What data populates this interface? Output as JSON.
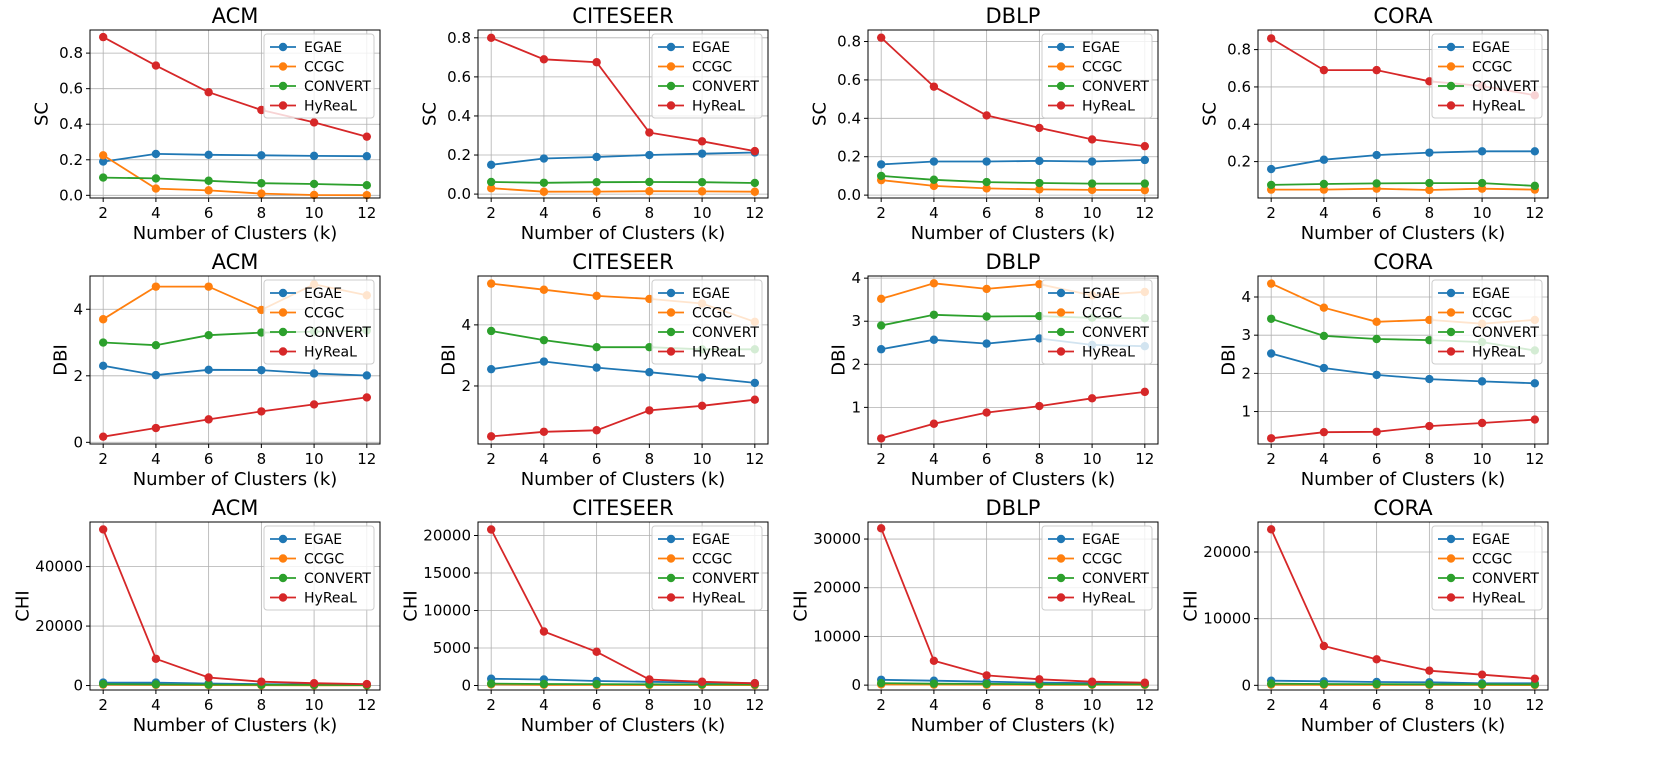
{
  "chart_data": {
    "type": "line",
    "layout": "3x4 grid",
    "x": [
      2,
      4,
      6,
      8,
      10,
      12
    ],
    "xlabel": "Number of Clusters (k)",
    "xticks": [
      "2",
      "4",
      "6",
      "8",
      "10",
      "12"
    ],
    "colors": {
      "EGAE": "#1f77b4",
      "CCGC": "#ff7f0e",
      "CONVERT": "#2ca02c",
      "HyReaL": "#d62728"
    },
    "legend_position": "upper right",
    "grid": true,
    "panels": [
      {
        "title": "ACM",
        "ylabel": "SC",
        "ylim": [
          -0.015,
          0.93
        ],
        "yticks": [
          0,
          0.2,
          0.4,
          0.6,
          0.8
        ],
        "ytick_labels": [
          "0.0",
          "0.2",
          "0.4",
          "0.6",
          "0.8"
        ],
        "series": [
          {
            "name": "EGAE",
            "values": [
              0.19,
              0.233,
              0.228,
              0.225,
              0.222,
              0.22
            ]
          },
          {
            "name": "CCGC",
            "values": [
              0.225,
              0.038,
              0.028,
              0.01,
              0.002,
              0.001
            ]
          },
          {
            "name": "CONVERT",
            "values": [
              0.1,
              0.095,
              0.082,
              0.068,
              0.064,
              0.057
            ]
          },
          {
            "name": "HyReaL",
            "values": [
              0.89,
              0.73,
              0.58,
              0.48,
              0.41,
              0.33
            ]
          }
        ]
      },
      {
        "title": "CITESEER",
        "ylabel": "SC",
        "ylim": [
          -0.02,
          0.84
        ],
        "yticks": [
          0,
          0.2,
          0.4,
          0.6,
          0.8
        ],
        "ytick_labels": [
          "0.0",
          "0.2",
          "0.4",
          "0.6",
          "0.8"
        ],
        "series": [
          {
            "name": "EGAE",
            "values": [
              0.15,
              0.182,
              0.19,
              0.2,
              0.207,
              0.213
            ]
          },
          {
            "name": "CCGC",
            "values": [
              0.03,
              0.012,
              0.013,
              0.015,
              0.014,
              0.012
            ]
          },
          {
            "name": "CONVERT",
            "values": [
              0.062,
              0.058,
              0.061,
              0.062,
              0.061,
              0.057
            ]
          },
          {
            "name": "HyReaL",
            "values": [
              0.8,
              0.69,
              0.675,
              0.315,
              0.27,
              0.22
            ]
          }
        ]
      },
      {
        "title": "DBLP",
        "ylabel": "SC",
        "ylim": [
          -0.015,
          0.86
        ],
        "yticks": [
          0,
          0.2,
          0.4,
          0.6,
          0.8
        ],
        "ytick_labels": [
          "0.0",
          "0.2",
          "0.4",
          "0.6",
          "0.8"
        ],
        "series": [
          {
            "name": "EGAE",
            "values": [
              0.16,
              0.175,
              0.175,
              0.178,
              0.175,
              0.183
            ]
          },
          {
            "name": "CCGC",
            "values": [
              0.078,
              0.048,
              0.035,
              0.03,
              0.027,
              0.026
            ]
          },
          {
            "name": "CONVERT",
            "values": [
              0.1,
              0.08,
              0.068,
              0.063,
              0.06,
              0.06
            ]
          },
          {
            "name": "HyReaL",
            "values": [
              0.82,
              0.565,
              0.415,
              0.35,
              0.29,
              0.255
            ]
          }
        ]
      },
      {
        "title": "CORA",
        "ylabel": "SC",
        "ylim": [
          0.005,
          0.905
        ],
        "yticks": [
          0.2,
          0.4,
          0.6,
          0.8
        ],
        "ytick_labels": [
          "0.2",
          "0.4",
          "0.6",
          "0.8"
        ],
        "series": [
          {
            "name": "EGAE",
            "values": [
              0.16,
              0.21,
              0.235,
              0.248,
              0.255,
              0.255
            ]
          },
          {
            "name": "CCGC",
            "values": [
              0.05,
              0.05,
              0.055,
              0.048,
              0.055,
              0.05
            ]
          },
          {
            "name": "CONVERT",
            "values": [
              0.075,
              0.08,
              0.083,
              0.085,
              0.085,
              0.07
            ]
          },
          {
            "name": "HyReaL",
            "values": [
              0.86,
              0.69,
              0.69,
              0.63,
              0.605,
              0.555
            ]
          }
        ]
      },
      {
        "title": "ACM",
        "ylabel": "DBI",
        "ylim": [
          -0.05,
          5.0
        ],
        "yticks": [
          0,
          2,
          4
        ],
        "ytick_labels": [
          "0",
          "2",
          "4"
        ],
        "series": [
          {
            "name": "EGAE",
            "values": [
              2.3,
              2.02,
              2.18,
              2.17,
              2.07,
              2.01
            ]
          },
          {
            "name": "CCGC",
            "values": [
              3.7,
              4.68,
              4.68,
              3.98,
              4.75,
              4.42
            ]
          },
          {
            "name": "CONVERT",
            "values": [
              3.0,
              2.92,
              3.22,
              3.3,
              3.33,
              3.36
            ]
          },
          {
            "name": "HyReaL",
            "values": [
              0.17,
              0.43,
              0.69,
              0.93,
              1.14,
              1.35
            ]
          }
        ]
      },
      {
        "title": "CITESEER",
        "ylabel": "DBI",
        "ylim": [
          0.1,
          5.6
        ],
        "yticks": [
          2,
          4
        ],
        "ytick_labels": [
          "2",
          "4"
        ],
        "series": [
          {
            "name": "EGAE",
            "values": [
              2.55,
              2.8,
              2.6,
              2.45,
              2.28,
              2.1
            ]
          },
          {
            "name": "CCGC",
            "values": [
              5.35,
              5.15,
              4.95,
              4.85,
              4.7,
              4.1
            ]
          },
          {
            "name": "CONVERT",
            "values": [
              3.8,
              3.5,
              3.27,
              3.27,
              3.2,
              3.2
            ]
          },
          {
            "name": "HyReaL",
            "values": [
              0.35,
              0.5,
              0.55,
              1.2,
              1.35,
              1.55
            ]
          }
        ]
      },
      {
        "title": "DBLP",
        "ylabel": "DBI",
        "ylim": [
          0.15,
          4.05
        ],
        "yticks": [
          1,
          2,
          3,
          4
        ],
        "ytick_labels": [
          "1",
          "2",
          "3",
          "4"
        ],
        "series": [
          {
            "name": "EGAE",
            "values": [
              2.35,
              2.57,
              2.48,
              2.6,
              2.45,
              2.42
            ]
          },
          {
            "name": "CCGC",
            "values": [
              3.52,
              3.88,
              3.75,
              3.86,
              3.6,
              3.68
            ]
          },
          {
            "name": "CONVERT",
            "values": [
              2.9,
              3.15,
              3.11,
              3.12,
              3.08,
              3.07
            ]
          },
          {
            "name": "HyReaL",
            "values": [
              0.28,
              0.62,
              0.88,
              1.03,
              1.21,
              1.36
            ]
          }
        ]
      },
      {
        "title": "CORA",
        "ylabel": "DBI",
        "ylim": [
          0.15,
          4.55
        ],
        "yticks": [
          1,
          2,
          3,
          4
        ],
        "ytick_labels": [
          "1",
          "2",
          "3",
          "4"
        ],
        "series": [
          {
            "name": "EGAE",
            "values": [
              2.52,
              2.14,
              1.96,
              1.85,
              1.79,
              1.74
            ]
          },
          {
            "name": "CCGC",
            "values": [
              4.35,
              3.72,
              3.35,
              3.4,
              3.3,
              3.4
            ]
          },
          {
            "name": "CONVERT",
            "values": [
              3.43,
              2.98,
              2.9,
              2.87,
              2.82,
              2.6
            ]
          },
          {
            "name": "HyReaL",
            "values": [
              0.3,
              0.46,
              0.47,
              0.62,
              0.7,
              0.79
            ]
          }
        ]
      },
      {
        "title": "ACM",
        "ylabel": "CHI",
        "ylim": [
          -1500,
          55000
        ],
        "yticks": [
          0,
          20000,
          40000
        ],
        "ytick_labels": [
          "0",
          "20000",
          "40000"
        ],
        "series": [
          {
            "name": "EGAE",
            "values": [
              1000,
              1000,
              700,
              500,
              400,
              300
            ]
          },
          {
            "name": "CCGC",
            "values": [
              300,
              200,
              150,
              100,
              80,
              50
            ]
          },
          {
            "name": "CONVERT",
            "values": [
              500,
              400,
              300,
              250,
              200,
              150
            ]
          },
          {
            "name": "HyReaL",
            "values": [
              52500,
              9000,
              2700,
              1300,
              800,
              500
            ]
          }
        ]
      },
      {
        "title": "CITESEER",
        "ylabel": "CHI",
        "ylim": [
          -600,
          21800
        ],
        "yticks": [
          0,
          5000,
          10000,
          15000,
          20000
        ],
        "ytick_labels": [
          "0",
          "5000",
          "10000",
          "15000",
          "20000"
        ],
        "series": [
          {
            "name": "EGAE",
            "values": [
              900,
              800,
              600,
              500,
              400,
              300
            ]
          },
          {
            "name": "CCGC",
            "values": [
              150,
              100,
              80,
              70,
              60,
              50
            ]
          },
          {
            "name": "CONVERT",
            "values": [
              250,
              200,
              180,
              160,
              150,
              130
            ]
          },
          {
            "name": "HyReaL",
            "values": [
              20800,
              7200,
              4500,
              800,
              500,
              300
            ]
          }
        ]
      },
      {
        "title": "DBLP",
        "ylabel": "CHI",
        "ylim": [
          -1000,
          33500
        ],
        "yticks": [
          0,
          10000,
          20000,
          30000
        ],
        "ytick_labels": [
          "0",
          "10000",
          "20000",
          "30000"
        ],
        "series": [
          {
            "name": "EGAE",
            "values": [
              1100,
              900,
              700,
              500,
              400,
              400
            ]
          },
          {
            "name": "CCGC",
            "values": [
              150,
              100,
              80,
              70,
              60,
              50
            ]
          },
          {
            "name": "CONVERT",
            "values": [
              400,
              300,
              250,
              200,
              180,
              150
            ]
          },
          {
            "name": "HyReaL",
            "values": [
              32200,
              5000,
              2000,
              1200,
              700,
              500
            ]
          }
        ]
      },
      {
        "title": "CORA",
        "ylabel": "CHI",
        "ylim": [
          -700,
          24500
        ],
        "yticks": [
          0,
          10000,
          20000
        ],
        "ytick_labels": [
          "0",
          "10000",
          "20000"
        ],
        "series": [
          {
            "name": "EGAE",
            "values": [
              700,
              600,
              500,
              450,
              300,
              300
            ]
          },
          {
            "name": "CCGC",
            "values": [
              100,
              80,
              70,
              60,
              50,
              40
            ]
          },
          {
            "name": "CONVERT",
            "values": [
              250,
              200,
              180,
              160,
              150,
              130
            ]
          },
          {
            "name": "HyReaL",
            "values": [
              23400,
              5900,
              3900,
              2200,
              1600,
              1000
            ]
          }
        ]
      }
    ]
  }
}
